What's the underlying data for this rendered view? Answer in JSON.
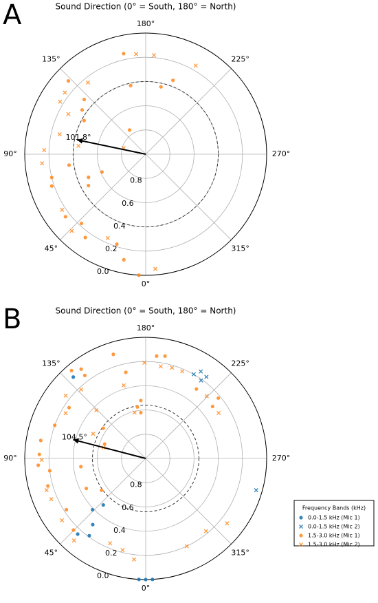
{
  "chart_data": [
    {
      "type": "polar",
      "panel_label": "A",
      "title": "Sound Direction (0° = South, 180° = North)",
      "xlim": [
        0,
        360
      ],
      "xticks": [
        {
          "value": 0,
          "label": "0°"
        },
        {
          "value": 45,
          "label": "45°"
        },
        {
          "value": 90,
          "label": "90°"
        },
        {
          "value": 135,
          "label": "135°"
        },
        {
          "value": 180,
          "label": "180°"
        },
        {
          "value": 225,
          "label": "225°"
        },
        {
          "value": 270,
          "label": "270°"
        },
        {
          "value": 315,
          "label": "315°"
        }
      ],
      "ylim": [
        1.0,
        0.0
      ],
      "yticks": [
        0.8,
        0.6,
        0.4,
        0.2,
        {
          "value": 0,
          "label": "0.0"
        }
      ],
      "grid": true,
      "dashed_circle_r": 0.4,
      "arrow": {
        "theta": 101.8,
        "r": 0.42,
        "label": "101.8°"
      },
      "series": [
        {
          "color": "#ff7f0e",
          "marker": "o",
          "alpha": 0.8,
          "x": [
            167.6,
            167.6,
            192.8,
            200.3,
            124.8,
            118.6,
            146.3,
            67.9,
            68,
            61.3,
            76.1,
            71.3,
            52.1,
            42.9,
            36,
            17.8,
            11.7,
            3.2,
            133.4,
            131.6,
            81.9
          ],
          "values": [
            0.15,
            0.42,
            0.43,
            0.35,
            0.36,
            0.42,
            0.76,
            0.61,
            0.49,
            0.46,
            0.2,
            0.18,
            0.16,
            0.22,
            0.15,
            0.22,
            0.11,
            0,
            0.12,
            0.32,
            0.36
          ]
        },
        {
          "color": "#ff7f0e",
          "marker": "x",
          "alpha": 0.8,
          "x": [
            174.5,
            184.8,
            209.5,
            141.1,
            127.3,
            121.5,
            117.4,
            92.3,
            85,
            103,
            97,
            56.4,
            44,
            24.4,
            355.2,
            105.7
          ],
          "values": [
            0.17,
            0.18,
            0.16,
            0.24,
            0.16,
            0.17,
            0.28,
            0.16,
            0.14,
            0.27,
            0.44,
            0.17,
            0.12,
            0.24,
            0.05,
            0.81
          ]
        }
      ]
    },
    {
      "type": "polar",
      "panel_label": "B",
      "title": "Sound Direction (0° = South, 180° = North)",
      "xlim": [
        0,
        360
      ],
      "xticks": [
        {
          "value": 0,
          "label": "0°"
        },
        {
          "value": 45,
          "label": "45°"
        },
        {
          "value": 90,
          "label": "90°"
        },
        {
          "value": 135,
          "label": "135°"
        },
        {
          "value": 180,
          "label": "180°"
        },
        {
          "value": 225,
          "label": "225°"
        },
        {
          "value": 270,
          "label": "270°"
        },
        {
          "value": 315,
          "label": "315°"
        }
      ],
      "ylim": [
        1.0,
        0.0
      ],
      "yticks": [
        0.8,
        0.6,
        0.4,
        0.2,
        {
          "value": 0,
          "label": "0.0"
        }
      ],
      "grid": true,
      "dashed_circle_r": 0.56,
      "arrow": {
        "theta": 104.5,
        "r": 0.38,
        "label": "104.5°"
      },
      "legend": {
        "title": "Frequency Bands (kHz)",
        "loc": "lower right"
      },
      "series": [
        {
          "name": "0.0-1.5 kHz (Mic 1)",
          "color": "#1f77b4",
          "marker": "o",
          "alpha": 0.9,
          "x": [
            138.3,
            42.4,
            46.1,
            38.7,
            36.2,
            42,
            3.2,
            0,
            356.8
          ],
          "values": [
            0.1,
            0.48,
            0.39,
            0.3,
            0.21,
            0.16,
            0,
            0,
            0
          ]
        },
        {
          "name": "0.0-1.5 kHz (Mic 2)",
          "color": "#1f77b4",
          "marker": "x",
          "alpha": 0.9,
          "x": [
            209.8,
            212.4,
            215.4,
            216.7,
            286
          ],
          "values": [
            0.2,
            0.15,
            0.21,
            0.16,
            0.05
          ]
        },
        {
          "name": "1.5-3.0 kHz (Mic 1)",
          "color": "#ff7f0e",
          "marker": "o",
          "alpha": 0.8,
          "x": [
            139.8,
            144.1,
            143.7,
            162.7,
            167,
            186.1,
            190.7,
            216.2,
            232.2,
            230.3,
            175.2,
            173.9,
            125.4,
            109.3,
            99.7,
            92.2,
            86.4,
            82.7,
            74.3,
            57.2,
            45.3,
            63.2,
            82.8,
            54.3,
            170.8,
            110,
            123.5
          ],
          "values": [
            0.05,
            0.09,
            0.15,
            0.1,
            0.27,
            0.15,
            0.14,
            0.29,
            0.3,
            0.22,
            0.52,
            0.62,
            0.57,
            0.64,
            0.12,
            0.12,
            0.11,
            0.2,
            0.16,
            0.22,
            0.16,
            0.45,
            0.46,
            0.55,
            0.57,
            0.2,
            0.24
          ]
        },
        {
          "name": "1.5-3.0 kHz (Mic 2)",
          "color": "#ff7f0e",
          "marker": "x",
          "alpha": 0.8,
          "x": [
            128.1,
            119.4,
            136.8,
            134.2,
            163.2,
            179.2,
            189.3,
            196.2,
            202.8,
            224.4,
            238.1,
            166.4,
            115.1,
            104.5,
            72.3,
            66.7,
            53.6,
            41.2,
            22.8,
            14.2,
            6.6,
            334.9,
            320.3,
            308.5,
            89.2
          ],
          "values": [
            0.16,
            0.24,
            0.22,
            0.43,
            0.37,
            0.21,
            0.23,
            0.22,
            0.22,
            0.28,
            0.29,
            0.61,
            0.52,
            0.64,
            0.14,
            0.15,
            0.14,
            0.1,
            0.24,
            0.22,
            0.16,
            0.2,
            0.22,
            0.14,
            0.14
          ]
        }
      ]
    }
  ]
}
